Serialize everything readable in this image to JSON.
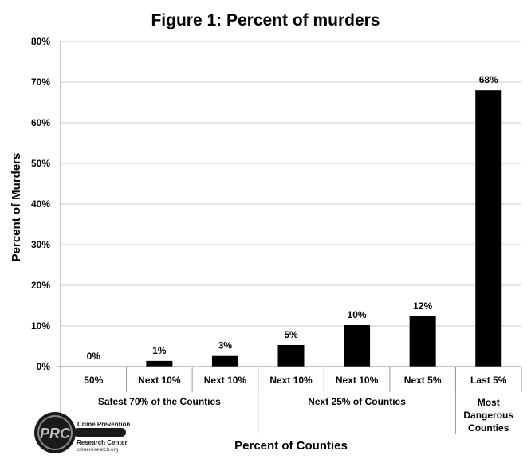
{
  "chart_data": {
    "type": "bar",
    "title": "Figure 1: Percent of murders",
    "xlabel": "Percent of Counties",
    "ylabel": "Percent of Murders",
    "ylim": [
      0,
      80
    ],
    "yticks": [
      "0%",
      "10%",
      "20%",
      "30%",
      "40%",
      "50%",
      "60%",
      "70%",
      "80%"
    ],
    "grid": true,
    "categories": [
      "50%",
      "Next 10%",
      "Next 10%",
      "Next 10%",
      "Next 10%",
      "Next 5%",
      "Last 5%"
    ],
    "values": [
      0,
      1.4,
      2.6,
      5.3,
      10.2,
      12.4,
      68
    ],
    "value_labels": [
      "0%",
      "1%",
      "3%",
      "5%",
      "10%",
      "12%",
      "68%"
    ],
    "groups": [
      {
        "label": "Safest 70% of the Counties",
        "span": 3
      },
      {
        "label": "Next 25% of Counties",
        "span": 3
      },
      {
        "label": "Most Dangerous Counties",
        "span": 1,
        "lines": [
          "Most",
          "Dangerous",
          "Counties"
        ]
      }
    ],
    "bar_color": "#000000",
    "grid_color": "#c8c8c8"
  },
  "logo": {
    "line1": "Crime Prevention",
    "line2": "Research Center",
    "url": "crimeresearch.org",
    "monogram": "PRC"
  }
}
